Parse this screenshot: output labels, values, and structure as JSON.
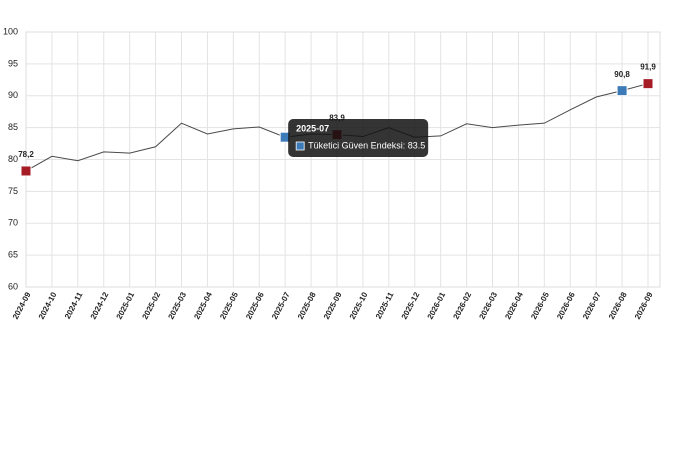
{
  "chart_data": {
    "type": "line",
    "categories": [
      "2024-09",
      "2024-10",
      "2024-11",
      "2024-12",
      "2025-01",
      "2025-02",
      "2025-03",
      "2025-04",
      "2025-05",
      "2025-06",
      "2025-07",
      "2025-08",
      "2025-09",
      "2025-10",
      "2025-11",
      "2025-12",
      "2026-01",
      "2026-02",
      "2026-03",
      "2026-04",
      "2026-05",
      "2026-06",
      "2026-07",
      "2026-08",
      "2026-09"
    ],
    "series": [
      {
        "color": "#4a4a4a",
        "values": [
          78.2,
          80.5,
          79.8,
          81.2,
          81.0,
          82.0,
          85.7,
          84.0,
          84.8,
          85.1,
          83.5,
          84.0,
          83.9,
          83.6,
          85.0,
          83.5,
          83.7,
          85.6,
          85.0,
          85.4,
          85.7,
          87.8,
          89.8,
          90.8,
          91.9
        ],
        "value_labels": [
          "78,2",
          null,
          null,
          null,
          null,
          null,
          null,
          null,
          null,
          null,
          null,
          null,
          "83,9",
          null,
          null,
          null,
          null,
          null,
          null,
          null,
          null,
          null,
          null,
          "90,8",
          "91,9"
        ],
        "marker_colors": [
          "#a51c24",
          null,
          null,
          null,
          null,
          null,
          null,
          null,
          null,
          null,
          "#3d7ab8",
          null,
          "#a51c24",
          null,
          null,
          null,
          null,
          null,
          null,
          null,
          null,
          null,
          null,
          "#3d7ab8",
          "#a51c24"
        ]
      }
    ],
    "ylim": [
      60,
      100
    ],
    "yticks": [
      60,
      65,
      70,
      75,
      80,
      85,
      90,
      95,
      100
    ],
    "grid": true,
    "tooltip": {
      "title": "2025-07",
      "label": "Tüketici Güven Endeksi: 83.5",
      "marker_color": "#3d7ab8"
    }
  }
}
